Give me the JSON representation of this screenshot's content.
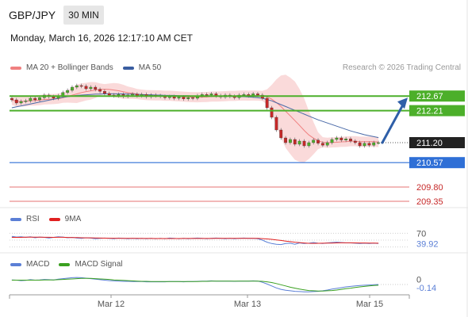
{
  "header": {
    "symbol": "GBP/JPY",
    "timeframe": "30 MIN",
    "datetime": "Monday, March 16, 2026 12:17:10 AM CET"
  },
  "legend": {
    "main": [
      {
        "label": "MA 20 + Bollinger Bands",
        "color": "#f08080"
      },
      {
        "label": "MA 50",
        "color": "#3a5da0"
      }
    ],
    "rsi": [
      {
        "label": "RSI",
        "color": "#5b7fd6"
      },
      {
        "label": "9MA",
        "color": "#e02020"
      }
    ],
    "macd": [
      {
        "label": "MACD",
        "color": "#5b7fd6"
      },
      {
        "label": "MACD Signal",
        "color": "#3aa020"
      }
    ]
  },
  "copyright": "Research © 2026 Trading Central",
  "colors": {
    "resistance": "#4caf2a",
    "current": "#222222",
    "pivot": "#2f6fd6",
    "support": "#e05050",
    "arrow": "#2f5fa8",
    "bullish_candle": "#4caf2a",
    "bearish_candle": "#c62828",
    "bollinger_fill": "#f9d3d3",
    "ma20": "#f08080",
    "ma50": "#4a6aa8"
  },
  "chart_data": {
    "type": "candlestick",
    "x_ticks": [
      "Mar 12",
      "Mar 13",
      "Mar 15"
    ],
    "levels": [
      {
        "value": 212.67,
        "label": "212.67",
        "kind": "resistance"
      },
      {
        "value": 212.21,
        "label": "212.21",
        "kind": "resistance"
      },
      {
        "value": 211.2,
        "label": "211.20",
        "kind": "current"
      },
      {
        "value": 210.57,
        "label": "210.57",
        "kind": "pivot"
      },
      {
        "value": 209.8,
        "label": "209.80",
        "kind": "support"
      },
      {
        "value": 209.35,
        "label": "209.35",
        "kind": "support"
      }
    ],
    "ylim": [
      209.25,
      213.2
    ],
    "price_close": [
      212.55,
      212.45,
      212.5,
      212.52,
      212.6,
      212.55,
      212.62,
      212.7,
      212.65,
      212.6,
      212.68,
      212.78,
      212.85,
      212.95,
      213.0,
      212.98,
      212.9,
      212.95,
      212.88,
      212.82,
      212.75,
      212.7,
      212.68,
      212.72,
      212.66,
      212.7,
      212.73,
      212.68,
      212.72,
      212.65,
      212.7,
      212.68,
      212.66,
      212.62,
      212.65,
      212.6,
      212.64,
      212.58,
      212.62,
      212.6,
      212.68,
      212.72,
      212.7,
      212.74,
      212.68,
      212.64,
      212.7,
      212.66,
      212.62,
      212.7,
      212.72,
      212.68,
      212.74,
      212.7,
      212.6,
      212.3,
      212.0,
      211.6,
      211.35,
      211.2,
      211.3,
      211.15,
      211.25,
      211.1,
      211.2,
      211.28,
      211.18,
      211.12,
      211.2,
      211.3,
      211.35,
      211.28,
      211.32,
      211.25,
      211.2,
      211.1,
      211.18,
      211.12,
      211.2,
      211.2
    ],
    "ma50": [
      212.3,
      212.33,
      212.36,
      212.39,
      212.42,
      212.45,
      212.48,
      212.51,
      212.54,
      212.57,
      212.6,
      212.63,
      212.65,
      212.67,
      212.69,
      212.7,
      212.71,
      212.72,
      212.73,
      212.73,
      212.74,
      212.74,
      212.74,
      212.74,
      212.74,
      212.73,
      212.73,
      212.72,
      212.72,
      212.71,
      212.71,
      212.7,
      212.7,
      212.69,
      212.69,
      212.69,
      212.68,
      212.68,
      212.68,
      212.67,
      212.67,
      212.67,
      212.67,
      212.67,
      212.67,
      212.66,
      212.66,
      212.66,
      212.66,
      212.65,
      212.65,
      212.64,
      212.63,
      212.62,
      212.6,
      212.56,
      212.52,
      212.46,
      212.4,
      212.34,
      212.28,
      212.22,
      212.16,
      212.1,
      212.04,
      211.98,
      211.92,
      211.87,
      211.82,
      211.77,
      211.72,
      211.67,
      211.62,
      211.57,
      211.53,
      211.49,
      211.45,
      211.42,
      211.39,
      211.36
    ],
    "rsi": {
      "ticks": [
        "70"
      ],
      "value_label": "39.92",
      "ylim": [
        20,
        80
      ],
      "values": [
        61,
        59,
        60,
        58,
        60,
        57,
        59,
        58,
        56,
        58,
        60,
        59,
        57,
        58,
        56,
        55,
        57,
        56,
        54,
        55,
        56,
        55,
        54,
        56,
        55,
        54,
        55,
        54,
        55,
        54,
        55,
        54,
        55,
        54,
        56,
        55,
        54,
        55,
        54,
        55,
        56,
        55,
        54,
        55,
        56,
        55,
        54,
        55,
        54,
        55,
        56,
        55,
        55,
        54,
        50,
        44,
        40,
        38,
        37,
        40,
        41,
        38,
        42,
        40,
        41,
        43,
        41,
        40,
        42,
        43,
        44,
        43,
        42,
        42,
        41,
        40,
        41,
        40,
        41,
        40
      ],
      "ma9": [
        58,
        58,
        58,
        58.5,
        58.7,
        58.6,
        58.5,
        58.4,
        58.2,
        58.1,
        58.3,
        58.2,
        57.9,
        57.6,
        57.3,
        57,
        56.8,
        56.6,
        56.3,
        56,
        55.8,
        55.6,
        55.5,
        55.4,
        55.3,
        55.2,
        55.1,
        55,
        54.9,
        54.8,
        54.8,
        54.7,
        54.7,
        54.6,
        54.7,
        54.7,
        54.7,
        54.8,
        54.8,
        54.8,
        54.9,
        54.9,
        54.9,
        54.9,
        55,
        55,
        55,
        55,
        55,
        55,
        55,
        55,
        55.1,
        55,
        54.5,
        53.5,
        52.2,
        50.6,
        49,
        47.3,
        45.7,
        44.1,
        42.8,
        41.6,
        40.8,
        40.6,
        40.8,
        40.9,
        41.2,
        41.5,
        41.9,
        42.1,
        42.2,
        42.1,
        42,
        41.8,
        41.6,
        41.4,
        41.2,
        41
      ]
    },
    "macd": {
      "ticks": [
        "0"
      ],
      "value_label": "-0.14",
      "ylim": [
        -0.5,
        0.35
      ],
      "values": [
        0.05,
        0.04,
        0.02,
        0.03,
        0.06,
        0.04,
        0.05,
        0.07,
        0.06,
        0.05,
        0.08,
        0.1,
        0.12,
        0.14,
        0.15,
        0.14,
        0.12,
        0.1,
        0.08,
        0.06,
        0.04,
        0.02,
        0.01,
        0.0,
        -0.01,
        -0.01,
        -0.02,
        -0.02,
        -0.02,
        -0.03,
        -0.03,
        -0.03,
        -0.03,
        -0.03,
        -0.02,
        -0.02,
        -0.02,
        -0.03,
        -0.02,
        -0.02,
        -0.01,
        0.0,
        0.0,
        0.01,
        0.0,
        0.0,
        0.0,
        0.0,
        -0.01,
        0.0,
        0.0,
        0.0,
        0.01,
        0.0,
        -0.05,
        -0.12,
        -0.2,
        -0.28,
        -0.34,
        -0.38,
        -0.4,
        -0.42,
        -0.43,
        -0.44,
        -0.44,
        -0.43,
        -0.42,
        -0.4,
        -0.37,
        -0.33,
        -0.3,
        -0.27,
        -0.24,
        -0.22,
        -0.2,
        -0.18,
        -0.17,
        -0.16,
        -0.15,
        -0.14
      ],
      "signal": [
        0.04,
        0.04,
        0.04,
        0.04,
        0.04,
        0.04,
        0.04,
        0.05,
        0.05,
        0.05,
        0.06,
        0.07,
        0.08,
        0.09,
        0.1,
        0.11,
        0.11,
        0.11,
        0.1,
        0.09,
        0.08,
        0.07,
        0.05,
        0.04,
        0.03,
        0.02,
        0.01,
        0.0,
        -0.01,
        -0.01,
        -0.02,
        -0.02,
        -0.02,
        -0.02,
        -0.02,
        -0.02,
        -0.02,
        -0.02,
        -0.02,
        -0.02,
        -0.02,
        -0.01,
        -0.01,
        0.0,
        0.0,
        0.0,
        0.0,
        0.0,
        0.0,
        0.0,
        0.0,
        0.0,
        0.0,
        0.0,
        -0.01,
        -0.03,
        -0.06,
        -0.1,
        -0.15,
        -0.2,
        -0.25,
        -0.29,
        -0.33,
        -0.36,
        -0.39,
        -0.4,
        -0.41,
        -0.41,
        -0.4,
        -0.39,
        -0.37,
        -0.34,
        -0.31,
        -0.29,
        -0.26,
        -0.24,
        -0.22,
        -0.2,
        -0.18,
        -0.17
      ]
    }
  }
}
